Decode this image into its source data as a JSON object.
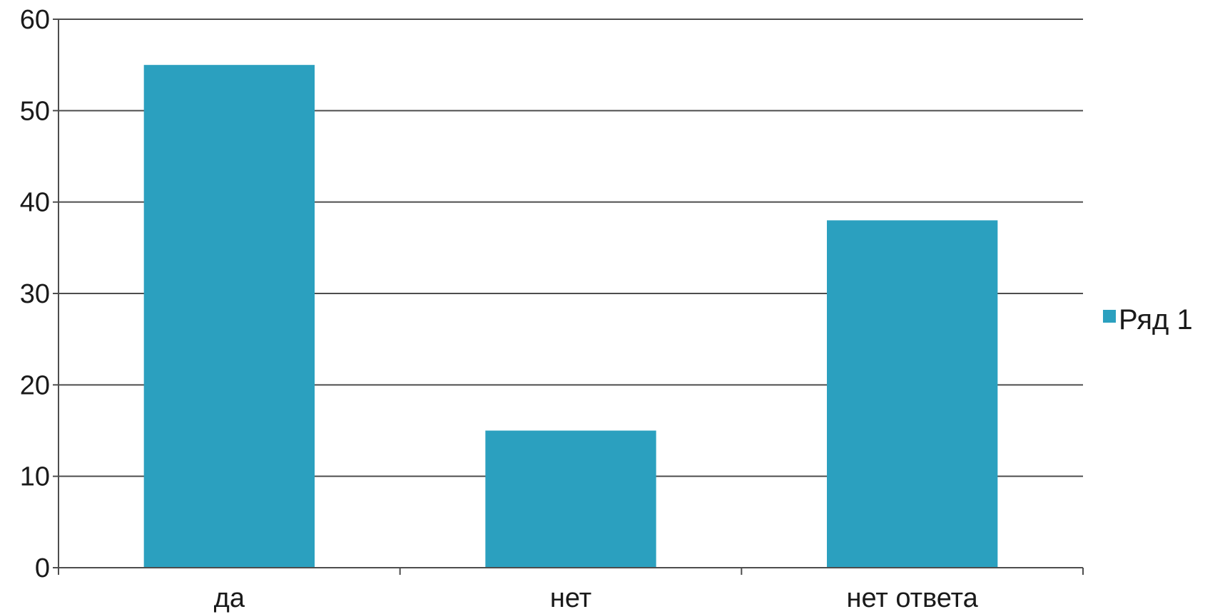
{
  "chart_data": {
    "type": "bar",
    "categories": [
      "да",
      "нет",
      "нет ответа"
    ],
    "series": [
      {
        "name": "Ряд 1",
        "values": [
          55,
          15,
          38
        ],
        "color": "#2ba0bf"
      }
    ],
    "ylim": [
      0,
      60
    ],
    "yticks": [
      "0",
      "10",
      "20",
      "30",
      "40",
      "50",
      "60"
    ],
    "grid": true,
    "legend_position": "right",
    "gridline_color": "#4d4d4d",
    "axis_color": "#4d4d4d"
  }
}
